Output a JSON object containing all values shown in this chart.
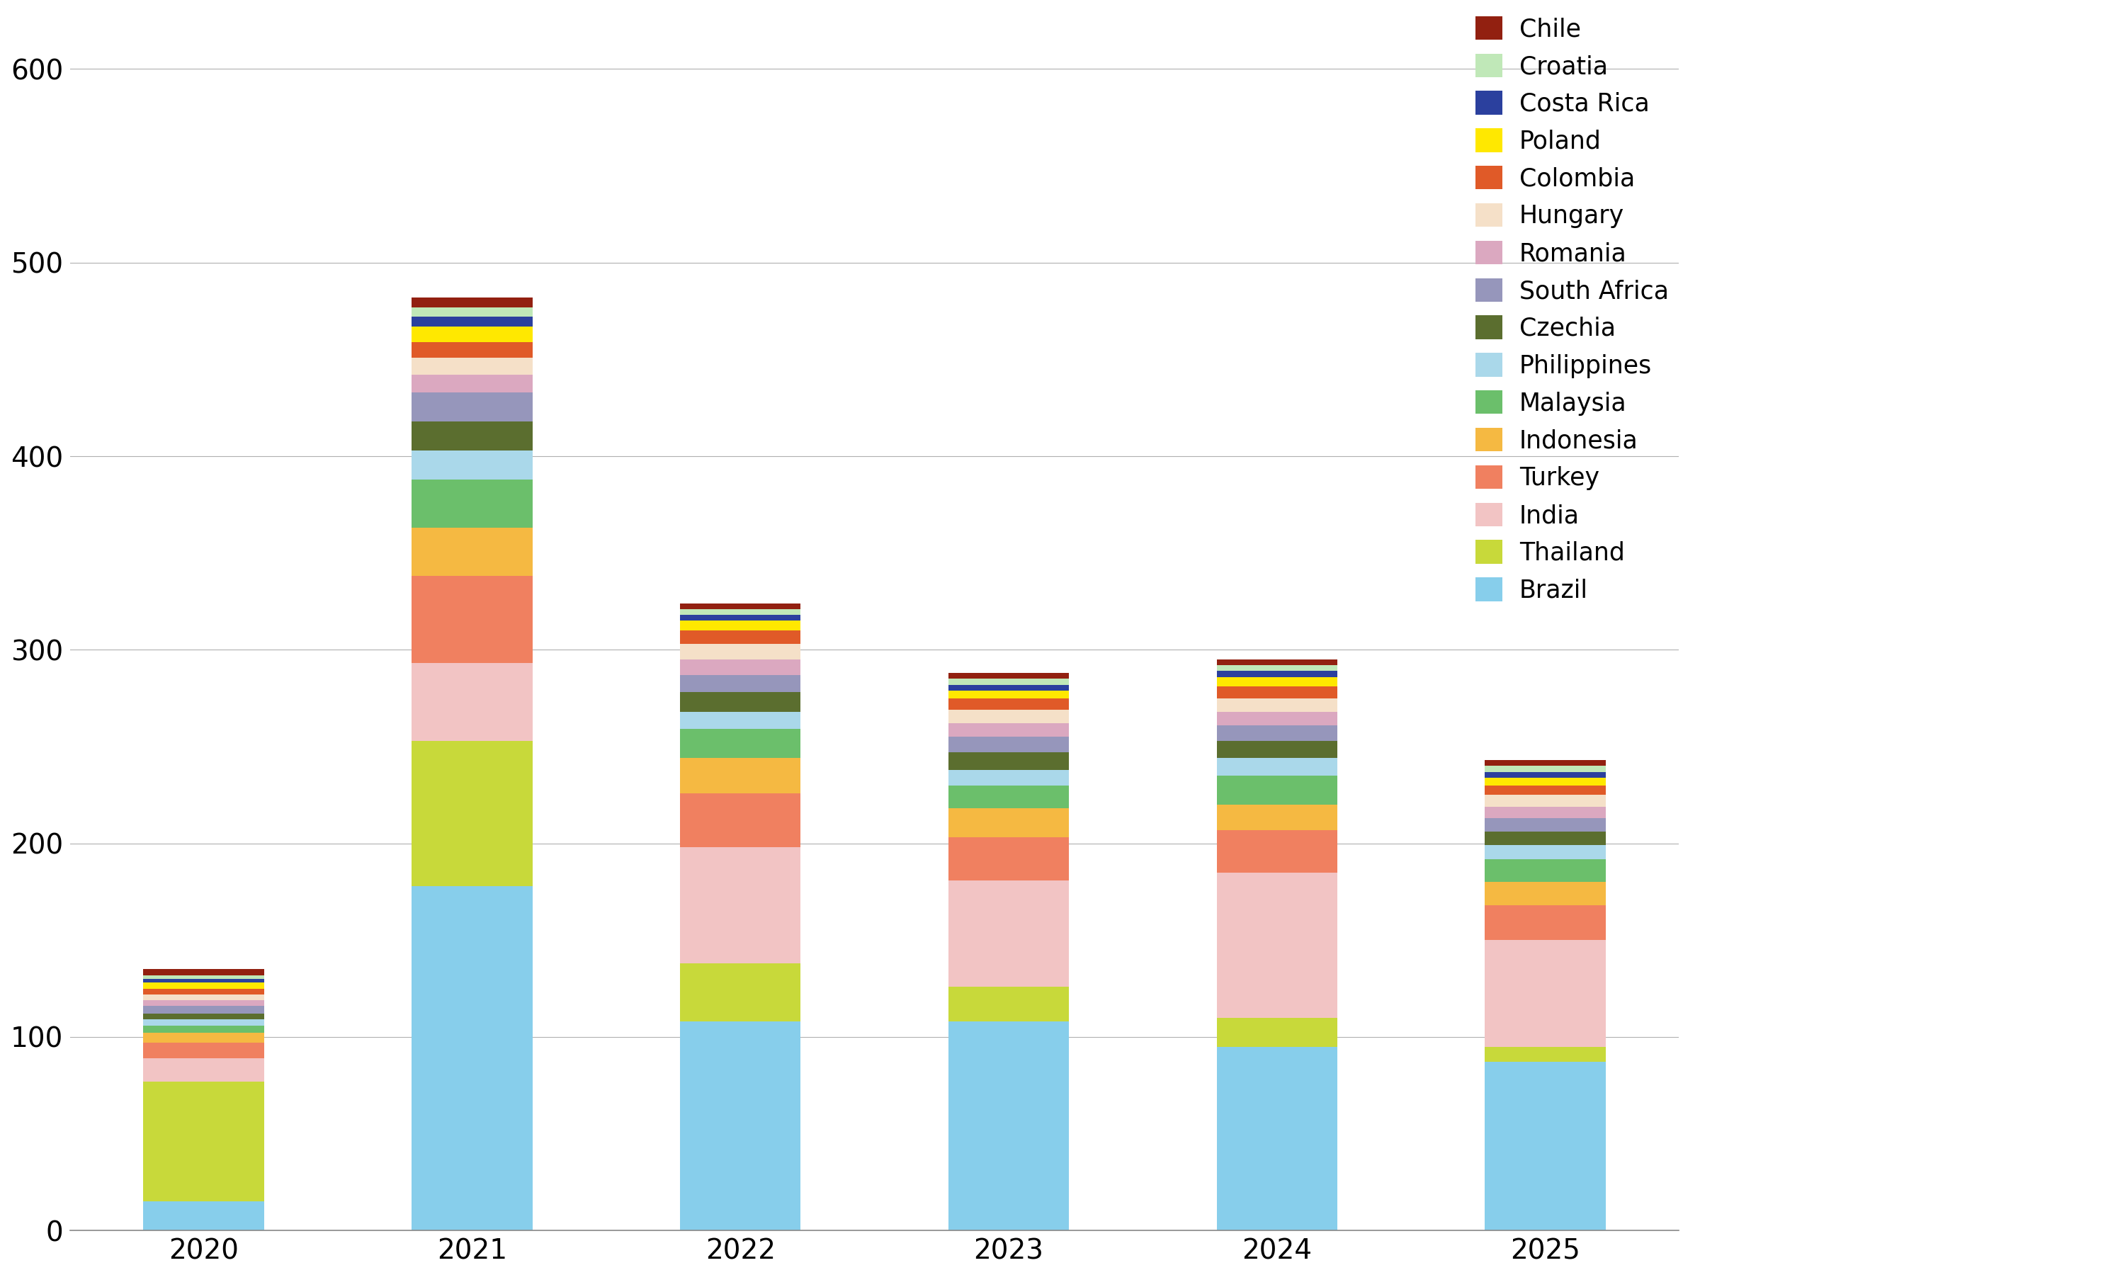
{
  "years": [
    "2020",
    "2021",
    "2022",
    "2023",
    "2024",
    "2025"
  ],
  "countries": [
    "Brazil",
    "Thailand",
    "India",
    "Turkey",
    "Indonesia",
    "Malaysia",
    "Philippines",
    "Czechia",
    "South Africa",
    "Romania",
    "Hungary",
    "Colombia",
    "Poland",
    "Costa Rica",
    "Croatia",
    "Chile"
  ],
  "colors": {
    "Brazil": "#87CEEB",
    "Thailand": "#C8D93A",
    "India": "#F2C4C4",
    "Turkey": "#F08060",
    "Indonesia": "#F5B942",
    "Malaysia": "#6BBF6B",
    "Philippines": "#AAD8EA",
    "Czechia": "#5B6E2F",
    "South Africa": "#9696BB",
    "Romania": "#DBA8C0",
    "Hungary": "#F5E0C8",
    "Colombia": "#E05A28",
    "Poland": "#FFE800",
    "Costa Rica": "#2B409E",
    "Croatia": "#C0E8B8",
    "Chile": "#922010"
  },
  "data": {
    "Brazil": [
      15,
      178,
      108,
      108,
      95,
      87
    ],
    "Thailand": [
      62,
      75,
      30,
      18,
      15,
      8
    ],
    "India": [
      12,
      40,
      60,
      55,
      75,
      55
    ],
    "Turkey": [
      8,
      45,
      28,
      22,
      22,
      18
    ],
    "Indonesia": [
      5,
      25,
      18,
      15,
      13,
      12
    ],
    "Malaysia": [
      4,
      25,
      15,
      12,
      15,
      12
    ],
    "Philippines": [
      3,
      15,
      9,
      8,
      9,
      7
    ],
    "Czechia": [
      3,
      15,
      10,
      9,
      9,
      7
    ],
    "South Africa": [
      4,
      15,
      9,
      8,
      8,
      7
    ],
    "Romania": [
      3,
      9,
      8,
      7,
      7,
      6
    ],
    "Hungary": [
      3,
      9,
      8,
      7,
      7,
      6
    ],
    "Colombia": [
      3,
      8,
      7,
      6,
      6,
      5
    ],
    "Poland": [
      3,
      8,
      5,
      4,
      5,
      4
    ],
    "Costa Rica": [
      2,
      5,
      3,
      3,
      3,
      3
    ],
    "Croatia": [
      2,
      5,
      3,
      3,
      3,
      3
    ],
    "Chile": [
      3,
      5,
      3,
      3,
      3,
      3
    ]
  },
  "ylim": [
    0,
    620
  ],
  "yticks": [
    0,
    100,
    200,
    300,
    400,
    500,
    600
  ],
  "background_color": "#ffffff",
  "grid_color": "#b0b0b0"
}
